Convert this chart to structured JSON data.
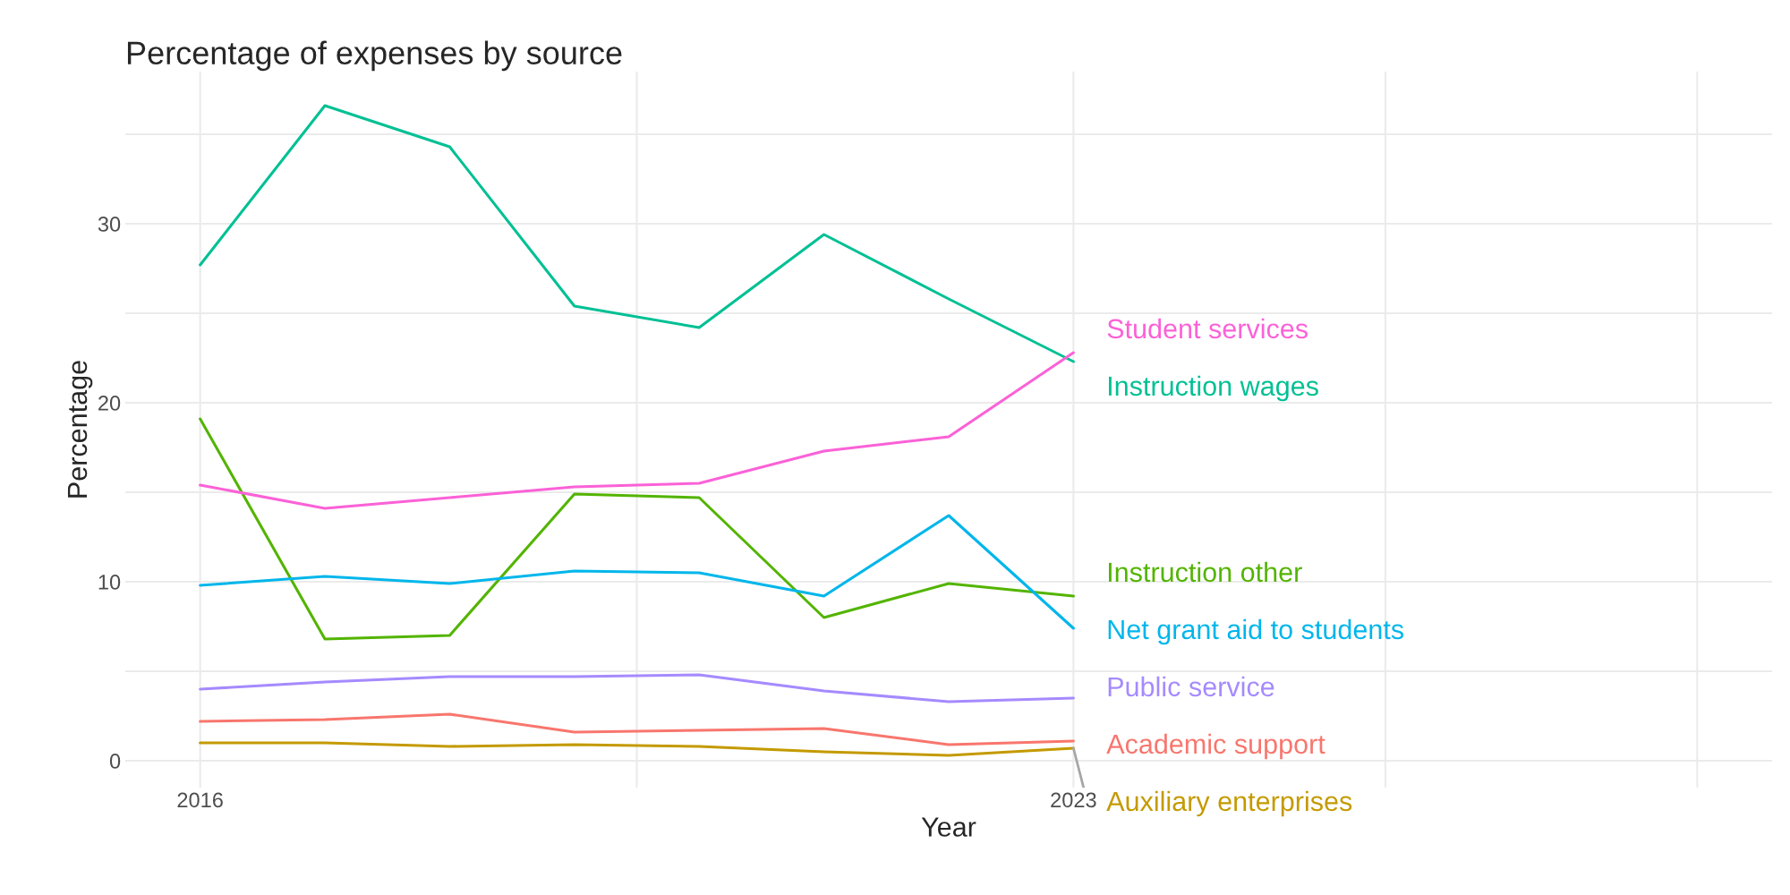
{
  "chart_data": {
    "type": "line",
    "title": "Percentage of expenses by source",
    "xlabel": "Year",
    "ylabel": "Percentage",
    "x": [
      2016,
      2017,
      2018,
      2019,
      2020,
      2021,
      2022,
      2023
    ],
    "series": [
      {
        "name": "Academic support",
        "color": "#f8766d",
        "values": [
          2.2,
          2.3,
          2.6,
          1.6,
          1.7,
          1.8,
          0.9,
          1.1
        ]
      },
      {
        "name": "Auxiliary enterprises",
        "color": "#c49a00",
        "values": [
          1.0,
          1.0,
          0.8,
          0.9,
          0.8,
          0.5,
          0.3,
          0.7
        ]
      },
      {
        "name": "Instruction other",
        "color": "#53b400",
        "values": [
          19.1,
          6.8,
          7.0,
          14.9,
          14.7,
          8.0,
          9.9,
          9.2
        ]
      },
      {
        "name": "Instruction wages",
        "color": "#00c094",
        "values": [
          27.7,
          36.6,
          34.3,
          25.4,
          24.2,
          29.4,
          25.8,
          22.3
        ]
      },
      {
        "name": "Net grant aid to students",
        "color": "#00b6eb",
        "values": [
          9.8,
          10.3,
          9.9,
          10.6,
          10.5,
          9.2,
          13.7,
          7.4
        ]
      },
      {
        "name": "Public service",
        "color": "#a58aff",
        "values": [
          4.0,
          4.4,
          4.7,
          4.7,
          4.8,
          3.9,
          3.3,
          3.5
        ]
      },
      {
        "name": "Student services",
        "color": "#fb61d7",
        "values": [
          15.4,
          14.1,
          14.7,
          15.3,
          15.5,
          17.3,
          18.1,
          22.8
        ]
      }
    ],
    "xlim": [
      2015.4,
      2028.6
    ],
    "ylim": [
      -1.5,
      38.5
    ],
    "xticks": [
      2016,
      {
        "value": 2019.5,
        "label": null
      },
      2023,
      {
        "value": 2025.5,
        "label": null
      },
      {
        "value": 2028,
        "label": null
      }
    ],
    "yticks": [
      0,
      {
        "value": 5,
        "label": null
      },
      10,
      {
        "value": 15,
        "label": null
      },
      20,
      {
        "value": 25,
        "label": null
      },
      30,
      {
        "value": 35,
        "label": null
      }
    ],
    "grid": true,
    "legend": false,
    "marker": "none",
    "line_style": "solid"
  }
}
